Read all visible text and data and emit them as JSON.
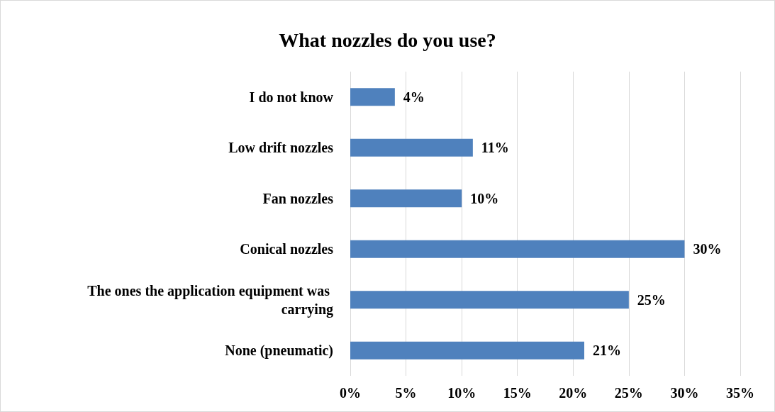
{
  "chart_data": {
    "type": "bar",
    "orientation": "horizontal",
    "title": "What nozzles do you use?",
    "categories": [
      "I do not know",
      "Low drift nozzles",
      "Fan nozzles",
      "Conical nozzles",
      "The ones the application equipment was carrying",
      "None (pneumatic)"
    ],
    "values": [
      4,
      11,
      10,
      30,
      25,
      21
    ],
    "value_labels": [
      "4%",
      "11%",
      "10%",
      "30%",
      "25%",
      "21%"
    ],
    "color": "#4f81bd",
    "xlim": [
      0,
      35
    ],
    "xticks": [
      {
        "value": 0,
        "label": "0%"
      },
      {
        "value": 5,
        "label": "5%"
      },
      {
        "value": 10,
        "label": "10%"
      },
      {
        "value": 15,
        "label": "15%"
      },
      {
        "value": 20,
        "label": "20%"
      },
      {
        "value": 25,
        "label": "25%"
      },
      {
        "value": 30,
        "label": "30%"
      },
      {
        "value": 35,
        "label": "35%"
      }
    ],
    "grid": "x"
  }
}
